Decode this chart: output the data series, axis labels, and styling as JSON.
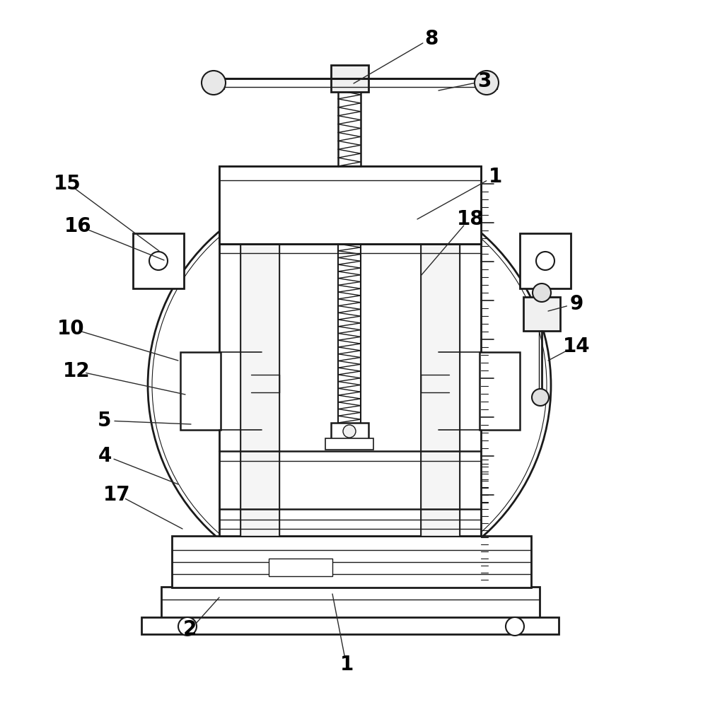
{
  "bg_color": "#ffffff",
  "lc": "#1a1a1a",
  "figsize": [
    9.95,
    10.0
  ],
  "dpi": 100,
  "annotations": [
    [
      "8",
      610,
      55,
      500,
      118
    ],
    [
      "3",
      685,
      115,
      620,
      128
    ],
    [
      "1",
      700,
      250,
      590,
      310
    ],
    [
      "18",
      665,
      310,
      595,
      390
    ],
    [
      "9",
      815,
      430,
      775,
      440
    ],
    [
      "14",
      815,
      490,
      775,
      510
    ],
    [
      "15",
      95,
      260,
      225,
      355
    ],
    [
      "16",
      110,
      320,
      232,
      368
    ],
    [
      "10",
      100,
      465,
      252,
      510
    ],
    [
      "12",
      108,
      525,
      262,
      558
    ],
    [
      "5",
      148,
      595,
      270,
      600
    ],
    [
      "4",
      148,
      645,
      252,
      685
    ],
    [
      "17",
      165,
      700,
      258,
      748
    ],
    [
      "2",
      268,
      890,
      310,
      845
    ],
    [
      "1",
      490,
      940,
      470,
      840
    ]
  ]
}
